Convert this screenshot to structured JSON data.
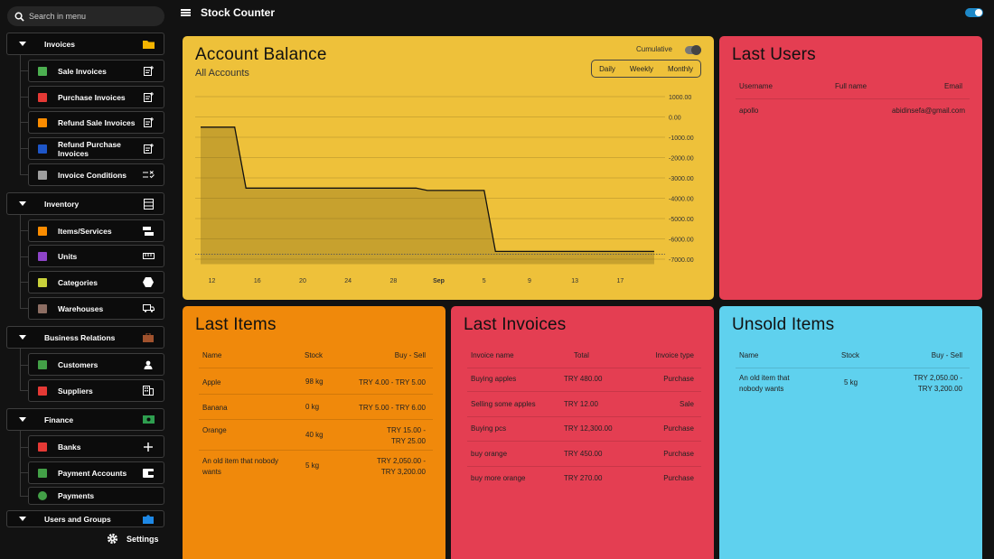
{
  "search": {
    "placeholder": "Search in menu"
  },
  "app": {
    "title": "Stock Counter"
  },
  "sidebar": {
    "groups": [
      {
        "label": "Invoices"
      },
      {
        "label": "Inventory"
      },
      {
        "label": "Business Relations"
      },
      {
        "label": "Finance"
      },
      {
        "label": "Users and Groups"
      }
    ],
    "invoices": [
      {
        "label": "Sale Invoices",
        "color": "#4caf50"
      },
      {
        "label": "Purchase Invoices",
        "color": "#e53935"
      },
      {
        "label": "Refund Sale Invoices",
        "color": "#fb8c00"
      },
      {
        "label": "Refund Purchase Invoices",
        "color": "#1e56c8"
      },
      {
        "label": "Invoice Conditions",
        "color": "#9e9e9e"
      }
    ],
    "inventory": [
      {
        "label": "Items/Services",
        "color": "#fb8c00"
      },
      {
        "label": "Units",
        "color": "#8e44c8"
      },
      {
        "label": "Categories",
        "color": "#c9d13a"
      },
      {
        "label": "Warehouses",
        "color": "#8d6e63"
      }
    ],
    "relations": [
      {
        "label": "Customers",
        "color": "#43a047"
      },
      {
        "label": "Suppliers",
        "color": "#e53935"
      }
    ],
    "finance": [
      {
        "label": "Banks",
        "color": "#e53935"
      },
      {
        "label": "Payment Accounts",
        "color": "#43a047"
      },
      {
        "label": "Payments",
        "color": "#43a047"
      }
    ],
    "settings_label": "Settings"
  },
  "balance": {
    "title": "Account Balance",
    "subtitle": "All Accounts",
    "cumulative_label": "Cumulative",
    "ranges": [
      "Daily",
      "Weekly",
      "Monthly"
    ]
  },
  "chart_data": {
    "type": "area",
    "title": "Account Balance",
    "x": [
      "11",
      "12",
      "13",
      "14",
      "15",
      "16",
      "17",
      "18",
      "19",
      "20",
      "21",
      "22",
      "23",
      "24",
      "25",
      "26",
      "27",
      "28",
      "29",
      "30",
      "31",
      "Sep",
      "2",
      "3",
      "4",
      "5",
      "6",
      "7",
      "8",
      "9",
      "10",
      "11",
      "12",
      "13",
      "14",
      "15",
      "16",
      "17",
      "18",
      "19",
      "20"
    ],
    "x_tick_labels": [
      "12",
      "16",
      "20",
      "24",
      "28",
      "Sep",
      "5",
      "9",
      "13",
      "17"
    ],
    "series": [
      {
        "name": "All Accounts",
        "values": [
          -500,
          -500,
          -500,
          -500,
          -3500,
          -3500,
          -3500,
          -3500,
          -3500,
          -3500,
          -3500,
          -3500,
          -3500,
          -3500,
          -3500,
          -3500,
          -3500,
          -3500,
          -3500,
          -3500,
          -3620,
          -3620,
          -3620,
          -3620,
          -3620,
          -3620,
          -6620,
          -6620,
          -6620,
          -6620,
          -6620,
          -6620,
          -6620,
          -6620,
          -6620,
          -6620,
          -6620,
          -6620,
          -6620,
          -6620,
          -6620
        ]
      }
    ],
    "y_tick_labels": [
      "1000.00",
      "0.00",
      "-1000.00",
      "-2000.00",
      "-3000.00",
      "-4000.00",
      "-5000.00",
      "-6000.00",
      "-7000.00"
    ],
    "ylim": [
      -7000,
      1000
    ],
    "xlabel": "",
    "ylabel": "",
    "grid": true
  },
  "last_users": {
    "title": "Last Users",
    "headers": [
      "Username",
      "Full name",
      "Email"
    ],
    "rows": [
      {
        "username": "apollo",
        "fullname": "",
        "email": "abidinsefa@gmail.com"
      }
    ]
  },
  "last_items": {
    "title": "Last Items",
    "headers": [
      "Name",
      "Stock",
      "Buy - Sell"
    ],
    "rows": [
      {
        "name": "Apple",
        "stock": "98 kg",
        "price": "TRY 4.00 - TRY 5.00"
      },
      {
        "name": "Banana",
        "stock": "0 kg",
        "price": "TRY 5.00 - TRY 6.00"
      },
      {
        "name": "Orange",
        "stock": "40 kg",
        "price": "TRY 15.00 - TRY 25.00"
      },
      {
        "name": "An old item that nobody wants",
        "stock": "5 kg",
        "price": "TRY 2,050.00 - TRY 3,200.00"
      }
    ]
  },
  "last_invoices": {
    "title": "Last Invoices",
    "headers": [
      "Invoice name",
      "Total",
      "Invoice type"
    ],
    "rows": [
      {
        "name": "Buying apples",
        "total": "TRY 480.00",
        "type": "Purchase"
      },
      {
        "name": "Selling some apples",
        "total": "TRY 12.00",
        "type": "Sale"
      },
      {
        "name": "Buying pcs",
        "total": "TRY 12,300.00",
        "type": "Purchase"
      },
      {
        "name": "buy orange",
        "total": "TRY 450.00",
        "type": "Purchase"
      },
      {
        "name": "buy more orange",
        "total": "TRY 270.00",
        "type": "Purchase"
      }
    ]
  },
  "unsold_items": {
    "title": "Unsold Items",
    "headers": [
      "Name",
      "Stock",
      "Buy - Sell"
    ],
    "rows": [
      {
        "name": "An old item that nobody wants",
        "stock": "5 kg",
        "price": "TRY 2,050.00 - TRY 3,200.00"
      }
    ]
  }
}
